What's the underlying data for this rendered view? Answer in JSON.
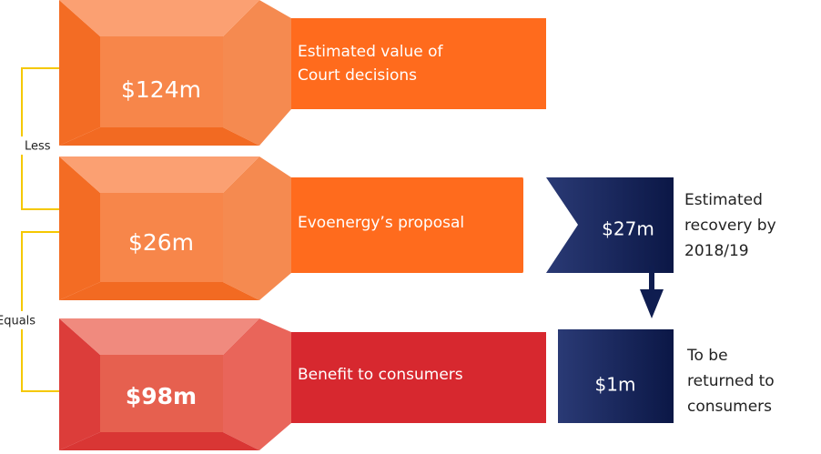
{
  "rows": [
    {
      "value": "$124m",
      "label": [
        "Estimated value of",
        "Court decisions"
      ]
    },
    {
      "value": "$26m",
      "label": [
        "Evoenergy’s proposal"
      ]
    },
    {
      "value": "$98m",
      "label": [
        "Benefit to consumers"
      ]
    }
  ],
  "connectors": [
    "Less",
    "Equals"
  ],
  "side": [
    {
      "value": "$27m",
      "label": [
        "Estimated",
        "recovery by",
        "2018/19"
      ]
    },
    {
      "value": "$1m",
      "label": [
        "To be",
        "returned to",
        "consumers"
      ]
    }
  ]
}
